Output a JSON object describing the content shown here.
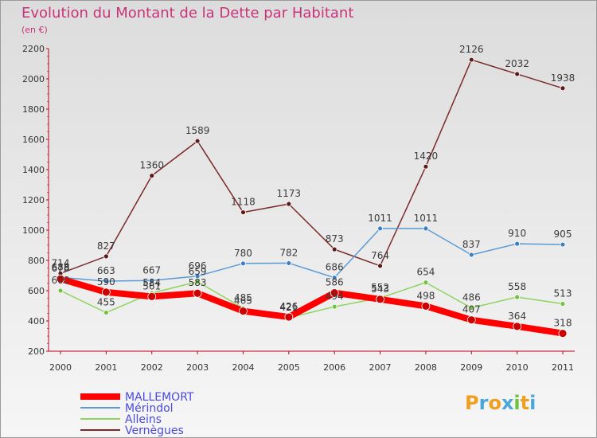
{
  "title": "Evolution du Montant de la Dette par Habitant",
  "subtitle": "(en €)",
  "logo": {
    "letters": [
      "P",
      "r",
      "o",
      "x",
      "i",
      "t",
      "i"
    ],
    "colors": [
      "#f0a020",
      "#4aa8d8",
      "#f0a020",
      "#4aa8d8",
      "#6cc23a",
      "#f0a020",
      "#4aa8d8"
    ]
  },
  "chart_data": {
    "type": "line",
    "x": [
      "2000",
      "2001",
      "2002",
      "2003",
      "2004",
      "2005",
      "2006",
      "2007",
      "2008",
      "2009",
      "2010",
      "2011"
    ],
    "ylim": [
      200,
      2200
    ],
    "yticks": [
      "200",
      "400",
      "600",
      "800",
      "1000",
      "1200",
      "1400",
      "1600",
      "1800",
      "2000",
      "2200"
    ],
    "grid": false,
    "legend_position": "bottom-left",
    "series": [
      {
        "name": "Vernègues",
        "color": "#7b2a2a",
        "dot": "#5c1a1a",
        "values": [
          714,
          827,
          1360,
          1589,
          1118,
          1173,
          873,
          764,
          1420,
          2126,
          2032,
          1938
        ],
        "labels": [
          "714",
          "827",
          "1360",
          "1589",
          "1118",
          "1173",
          "873",
          "764",
          "1420",
          "2126",
          "2032",
          "1938"
        ]
      },
      {
        "name": "Mérindol",
        "color": "#5b9bd5",
        "dot": "#3c7fc4",
        "values": [
          688,
          663,
          667,
          696,
          780,
          782,
          686,
          1011,
          1011,
          837,
          910,
          905
        ],
        "labels": [
          "688",
          "663",
          "667",
          "696",
          "780",
          "782",
          "686",
          "1011",
          "1011",
          "837",
          "910",
          "905"
        ]
      },
      {
        "name": "Alleins",
        "color": "#8fd45f",
        "dot": "#74c23e",
        "values": [
          600,
          455,
          584,
          659,
          485,
          421,
          494,
          552,
          654,
          486,
          558,
          513
        ],
        "labels": [
          "600",
          "455",
          "584",
          "659",
          "485",
          "421",
          "494",
          "552",
          "654",
          "486",
          "558",
          "513"
        ]
      },
      {
        "name": "MALLEMORT",
        "color": "#ff0000",
        "dot": "#cc0000",
        "values": [
          678,
          590,
          561,
          583,
          465,
          426,
          586,
          543,
          498,
          407,
          364,
          318
        ],
        "labels": [
          "678",
          "590",
          "561",
          "583",
          "465",
          "426",
          "586",
          "543",
          "498",
          "407",
          "364",
          "318"
        ]
      }
    ]
  },
  "legend": [
    {
      "name": "MALLEMORT",
      "color": "#ff0000"
    },
    {
      "name": "Mérindol",
      "color": "#5b9bd5"
    },
    {
      "name": "Alleins",
      "color": "#8fd45f"
    },
    {
      "name": "Vernègues",
      "color": "#7b2a2a"
    }
  ]
}
